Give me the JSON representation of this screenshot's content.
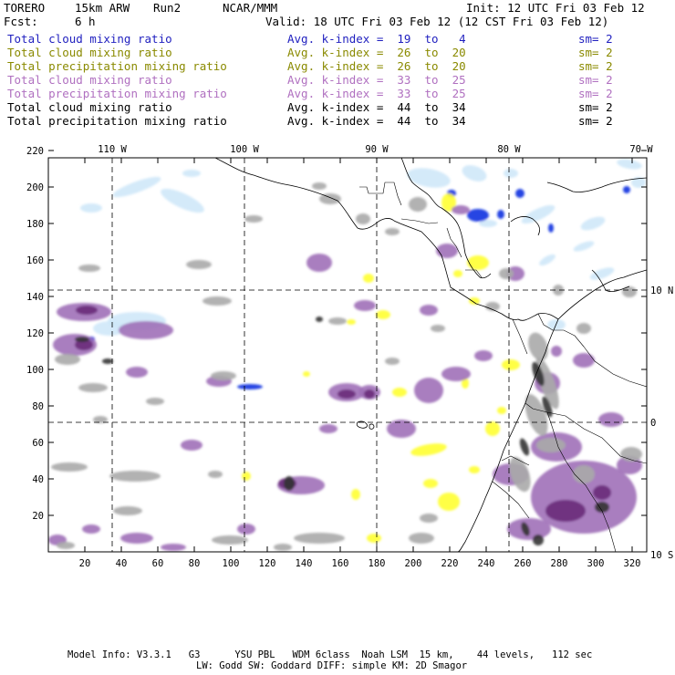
{
  "header": {
    "model": "TORERO",
    "resolution": "15km ARW",
    "run": "Run2",
    "org": "NCAR/MMM",
    "init": "Init: 12 UTC Fri 03 Feb 12",
    "fcst_label": "Fcst:",
    "fcst_value": "6 h",
    "valid": "Valid: 18 UTC Fri 03 Feb 12 (12 CST Fri 03 Feb 12)"
  },
  "legend": [
    {
      "field": "Total cloud mixing ratio",
      "k": "Avg. k-index =  19  to   4",
      "sm": "sm= 2",
      "color": "#1f1fbf"
    },
    {
      "field": "Total cloud mixing ratio",
      "k": "Avg. k-index =  26  to  20",
      "sm": "sm= 2",
      "color": "#8a8a00"
    },
    {
      "field": "Total precipitation mixing ratio",
      "k": "Avg. k-index =  26  to  20",
      "sm": "sm= 2",
      "color": "#8a8a00"
    },
    {
      "field": "Total cloud mixing ratio",
      "k": "Avg. k-index =  33  to  25",
      "sm": "sm= 2",
      "color": "#b070c0"
    },
    {
      "field": "Total precipitation mixing ratio",
      "k": "Avg. k-index =  33  to  25",
      "sm": "sm= 2",
      "color": "#b070c0"
    },
    {
      "field": "Total cloud mixing ratio",
      "k": "Avg. k-index =  44  to  34",
      "sm": "sm= 2",
      "color": "#000000"
    },
    {
      "field": "Total precipitation mixing ratio",
      "k": "Avg. k-index =  44  to  34",
      "sm": "sm= 2",
      "color": "#000000"
    }
  ],
  "map": {
    "lon_labels": [
      "110 W",
      "100 W",
      "90 W",
      "80 W",
      "70 W"
    ],
    "lat_labels": [
      "10 N",
      "0",
      "10 S"
    ],
    "x_ticks": [
      "20",
      "40",
      "60",
      "80",
      "100",
      "120",
      "140",
      "160",
      "180",
      "200",
      "220",
      "240",
      "260",
      "280",
      "300",
      "320"
    ],
    "y_ticks": [
      "20",
      "40",
      "60",
      "80",
      "100",
      "120",
      "140",
      "160",
      "180",
      "200",
      "220"
    ],
    "colors": {
      "blue_light": "#cfe8f8",
      "blue": "#1030e0",
      "yellow": "#ffff30",
      "purple": "#a070b8",
      "purple_dark": "#6a2a7a",
      "gray": "#aaaaaa",
      "gray_dark": "#333333"
    }
  },
  "footer": {
    "line1": "Model Info: V3.3.1   G3      YSU PBL   WDM 6class  Noah LSM  15 km,    44 levels,   112 sec",
    "line2": "LW: Godd SW: Goddard DIFF: simple KM: 2D Smagor"
  }
}
